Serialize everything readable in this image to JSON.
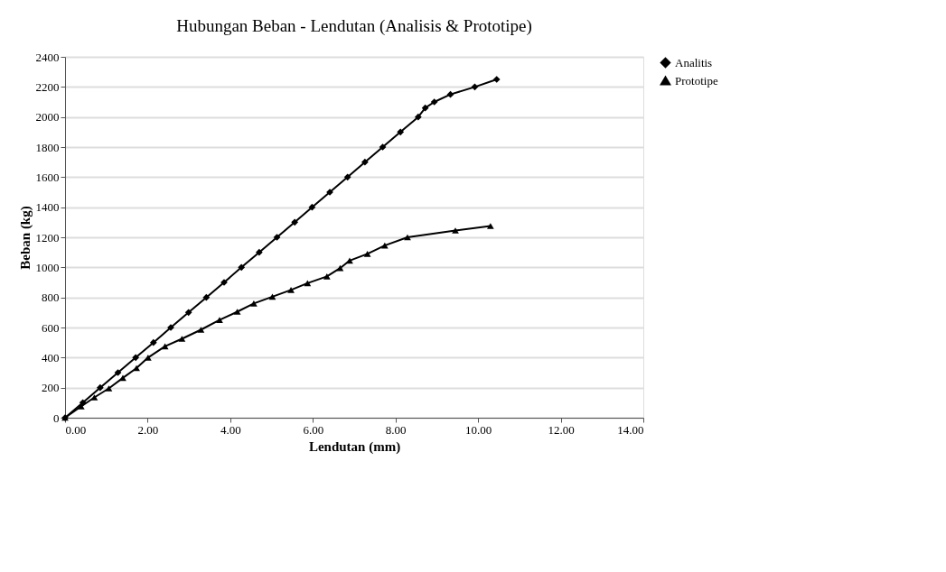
{
  "chart_data": {
    "type": "line",
    "title": "Hubungan Beban - Lendutan (Analisis & Prototipe)",
    "xlabel": "Lendutan (mm)",
    "ylabel": "Beban (kg)",
    "xlim": [
      0,
      14
    ],
    "xticks": [
      {
        "value": 0,
        "label": "0.00"
      },
      {
        "value": 2,
        "label": "2.00"
      },
      {
        "value": 4,
        "label": "4.00"
      },
      {
        "value": 6,
        "label": "6.00"
      },
      {
        "value": 8,
        "label": "8.00"
      },
      {
        "value": 10,
        "label": "10.00"
      },
      {
        "value": 12,
        "label": "12.00"
      },
      {
        "value": 14,
        "label": "14.00"
      }
    ],
    "ylim": [
      0,
      2400
    ],
    "yticks": [
      0,
      200,
      400,
      600,
      800,
      1000,
      1200,
      1400,
      1600,
      1800,
      2000,
      2200,
      2400
    ],
    "grid": "y",
    "legend": "right",
    "series": [
      {
        "name": "Analitis",
        "color": "#000000",
        "marker": "diamond",
        "x": [
          0,
          0.43,
          0.85,
          1.28,
          1.71,
          2.14,
          2.56,
          2.99,
          3.42,
          3.85,
          4.27,
          4.7,
          5.13,
          5.56,
          5.98,
          6.41,
          6.84,
          7.26,
          7.69,
          8.12,
          8.55,
          8.72,
          8.94,
          9.33,
          9.92,
          10.45
        ],
        "values": [
          0,
          100,
          200,
          300,
          400,
          500,
          600,
          700,
          800,
          900,
          1000,
          1100,
          1200,
          1300,
          1400,
          1500,
          1600,
          1700,
          1800,
          1900,
          2000,
          2060,
          2100,
          2150,
          2200,
          2250
        ]
      },
      {
        "name": "Prototipe",
        "color": "#000000",
        "marker": "triangle",
        "x": [
          0,
          0.39,
          0.71,
          1.06,
          1.4,
          1.73,
          2.01,
          2.42,
          2.83,
          3.29,
          3.74,
          4.17,
          4.57,
          5.02,
          5.47,
          5.87,
          6.34,
          6.66,
          6.89,
          7.32,
          7.74,
          8.29,
          9.45,
          10.3
        ],
        "values": [
          0,
          75,
          135,
          195,
          265,
          330,
          400,
          475,
          525,
          585,
          650,
          705,
          760,
          805,
          850,
          895,
          940,
          995,
          1045,
          1090,
          1145,
          1200,
          1245,
          1275
        ]
      }
    ]
  }
}
